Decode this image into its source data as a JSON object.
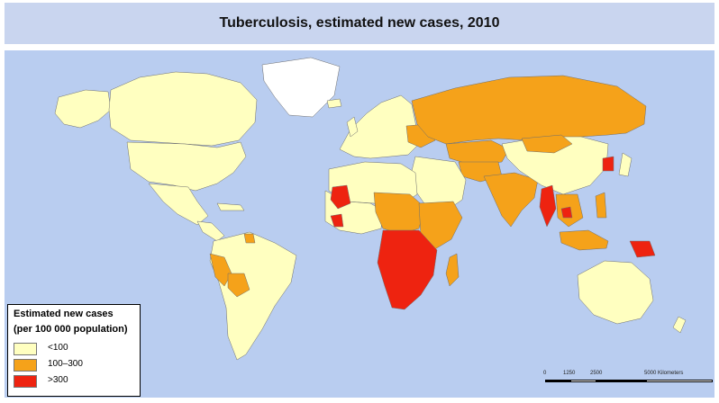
{
  "title": "Tuberculosis, estimated new cases, 2010",
  "legend": {
    "title": "Estimated new cases",
    "subtitle": "(per 100 000 population)",
    "items": [
      {
        "label": "<100",
        "color": "#ffffc0"
      },
      {
        "label": "100–300",
        "color": "#f5a21a"
      },
      {
        "label": ">300",
        "color": "#ee2310"
      }
    ]
  },
  "scale": {
    "ticks": [
      "0",
      "1250",
      "2500",
      "5000 Kilometers"
    ]
  },
  "colors": {
    "ocean": "#b9cdf0",
    "low": "#ffffc0",
    "mid": "#f5a21a",
    "high": "#ee2310",
    "no_data": "#ffffff",
    "border": "#6e6e6e"
  }
}
